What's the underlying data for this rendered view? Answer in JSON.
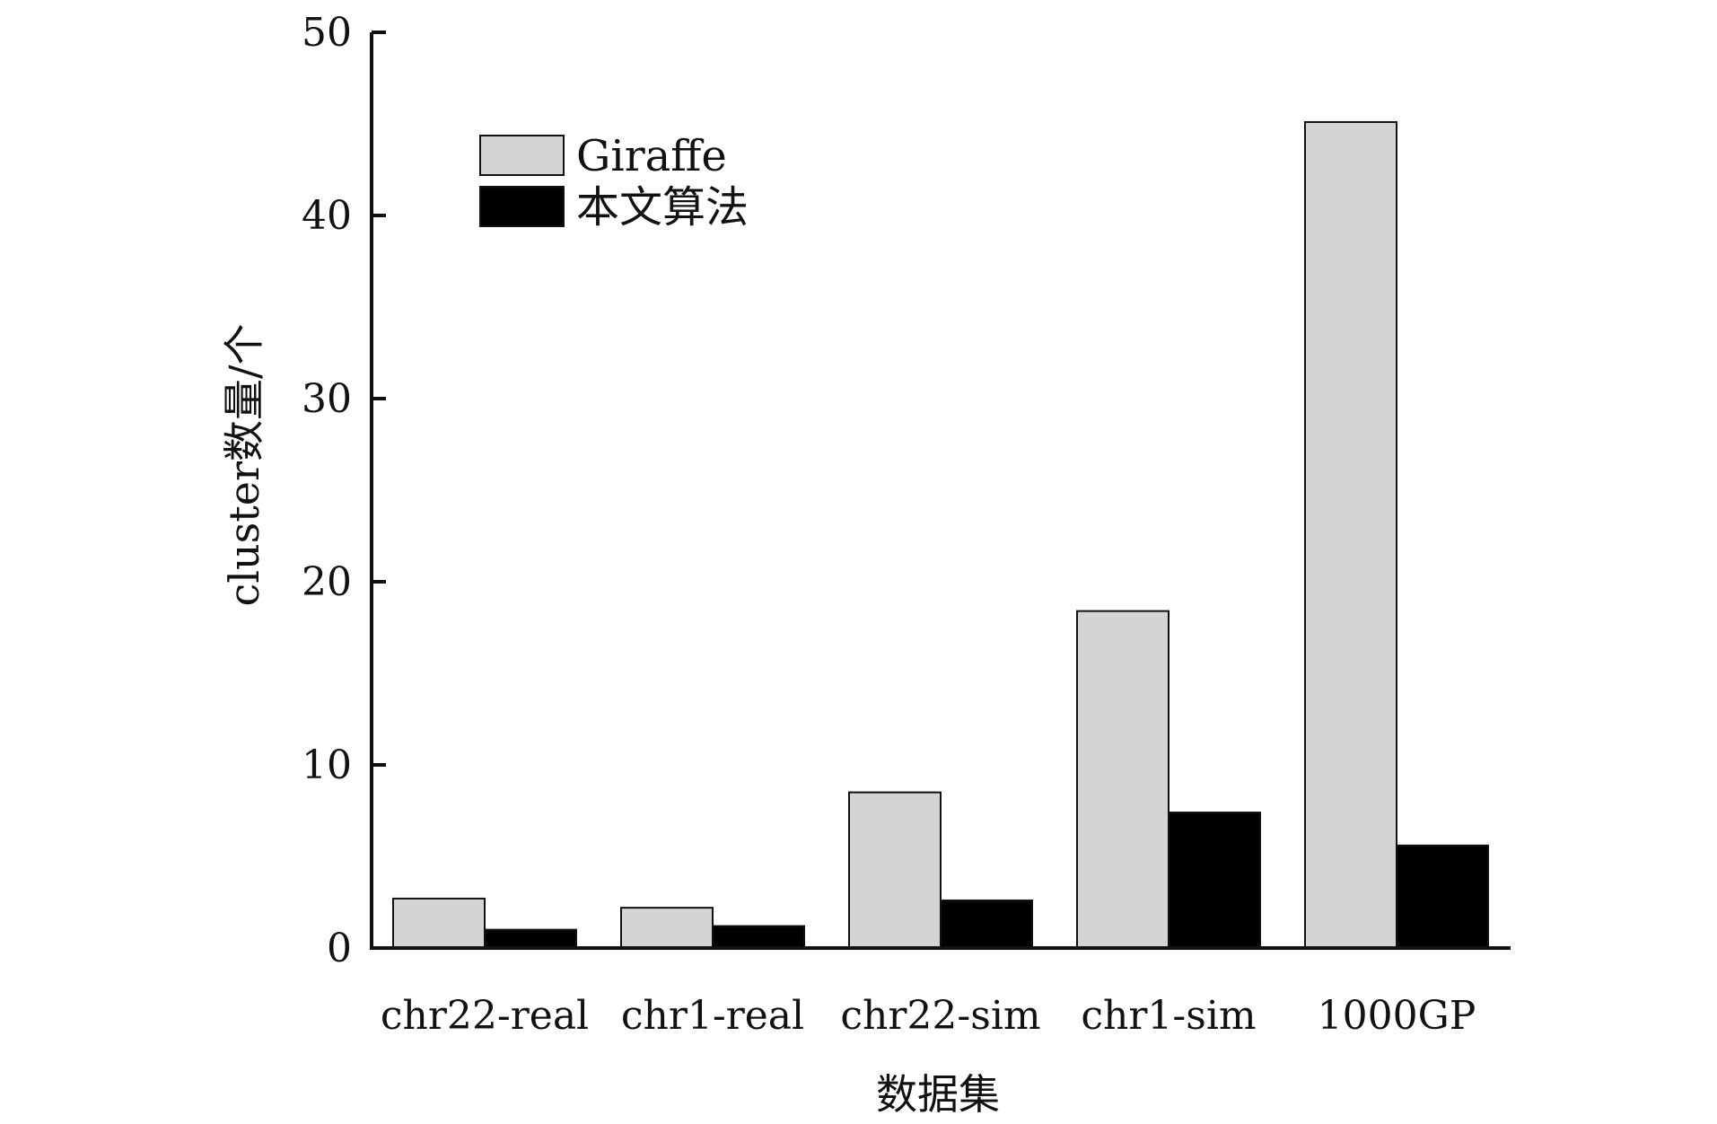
{
  "chart_data": {
    "type": "bar",
    "categories": [
      "chr22-real",
      "chr1-real",
      "chr22-sim",
      "chr1-sim",
      "1000GP"
    ],
    "series": [
      {
        "name": "Giraffe",
        "values": [
          2.7,
          2.2,
          8.5,
          18.4,
          45.1
        ],
        "color": "#d4d4d4"
      },
      {
        "name": "本文算法",
        "values": [
          1.0,
          1.2,
          2.6,
          7.4,
          5.6
        ],
        "color": "#000000"
      }
    ],
    "xlabel": "数据集",
    "ylabel": "cluster数量/个",
    "ylim": [
      0,
      50
    ],
    "yticks": [
      0,
      10,
      20,
      30,
      40,
      50
    ],
    "grid": false,
    "legend_position": "top-left"
  }
}
